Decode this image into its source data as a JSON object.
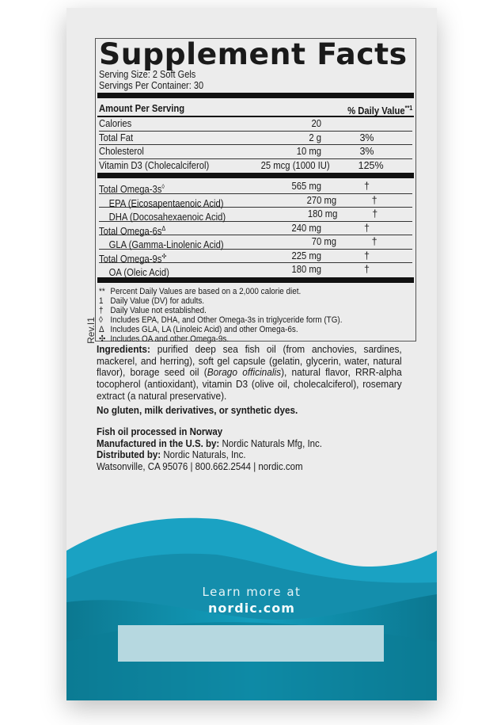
{
  "label": {
    "title": "Supplement Facts",
    "serving_size": "Serving Size: 2 Soft Gels",
    "servings_per_container": "Servings Per Container: 30",
    "header_amount": "Amount Per Serving",
    "header_dv": "% Daily Value",
    "header_dv_mark": "**1",
    "rows_top": [
      {
        "name": "Calories",
        "amount": "20",
        "dv": ""
      },
      {
        "name": "Total Fat",
        "amount": "2 g",
        "dv": "3%"
      },
      {
        "name": "Cholesterol",
        "amount": "10 mg",
        "dv": "3%"
      },
      {
        "name": "Vitamin D3 (Cholecalciferol)",
        "amount": "25 mcg (1000 IU)",
        "dv": "125%"
      }
    ],
    "rows_fatty": [
      {
        "name": "Total Omega-3s",
        "mark": "◊",
        "amount": "565 mg",
        "dv": "†"
      },
      {
        "name": "EPA (Eicosapentaenoic Acid)",
        "mark": "",
        "amount": "270 mg",
        "dv": "†"
      },
      {
        "name": "DHA (Docosahexaenoic Acid)",
        "mark": "",
        "amount": "180 mg",
        "dv": "†"
      },
      {
        "name": "Total Omega-6s",
        "mark": "Δ",
        "amount": "240 mg",
        "dv": "†"
      },
      {
        "name": "GLA (Gamma-Linolenic Acid)",
        "mark": "",
        "amount": "70 mg",
        "dv": "†"
      },
      {
        "name": "Total Omega-9s",
        "mark": "✣",
        "amount": "225 mg",
        "dv": "†"
      },
      {
        "name": "OA (Oleic Acid)",
        "mark": "",
        "amount": "180 mg",
        "dv": "†"
      }
    ],
    "footnotes": [
      {
        "symbol": "**",
        "text": "Percent Daily Values are based on a 2,000 calorie diet."
      },
      {
        "symbol": "1",
        "text": "Daily Value (DV) for adults."
      },
      {
        "symbol": "†",
        "text": "Daily Value not established."
      },
      {
        "symbol": "◊",
        "text": "Includes EPA, DHA, and Other Omega-3s in triglyceride form (TG)."
      },
      {
        "symbol": "Δ",
        "text": "Includes GLA, LA (Linoleic Acid) and other Omega-6s."
      },
      {
        "symbol": "✣",
        "text": "Includes OA and other Omega-9s."
      }
    ]
  },
  "revision": "Rev.I1",
  "ingredients": {
    "label": "Ingredients:",
    "text_1": " purified deep sea fish oil (from anchovies, sardines, mackerel, and herring), soft gel capsule (gelatin, glycerin, water, natural flavor), borage seed oil (",
    "italic": "Borago officinalis",
    "text_2": "), natural flavor, RRR-alpha tocopherol (antioxidant), vitamin D3 (olive oil, cholecalciferol), rosemary extract (a natural preservative)."
  },
  "free_from": "No gluten, milk derivatives, or synthetic dyes.",
  "origin": "Fish oil processed in Norway",
  "manufactured_label": "Manufactured in the U.S. by:",
  "manufactured_value": " Nordic Naturals Mfg, Inc.",
  "distributed_label": "Distributed by:",
  "distributed_value": " Nordic Naturals, Inc.",
  "address": "Watsonville, CA 95076 | 800.662.2544 | nordic.com",
  "promo": {
    "line1": "Learn more at",
    "line2": "nordic.com"
  },
  "colors": {
    "wave_light": "#1fa3c2",
    "wave_dark": "#0e7f98",
    "barcode_area": "#b6d8e0"
  }
}
